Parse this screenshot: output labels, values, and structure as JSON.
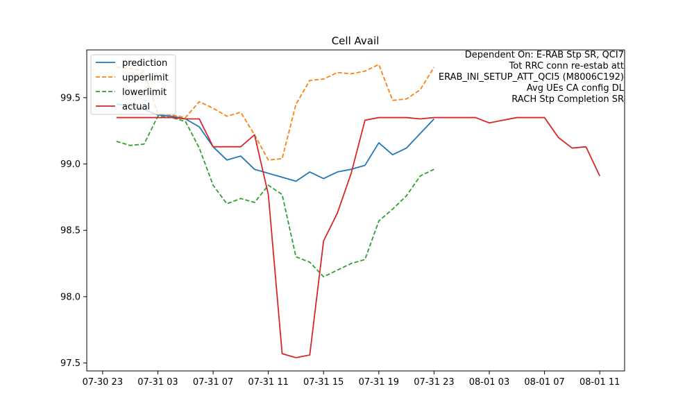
{
  "chart_data": {
    "type": "line",
    "title": "Cell Avail",
    "xlabel": "",
    "ylabel": "",
    "x_ticks": [
      "07-30 23",
      "07-31 03",
      "07-31 07",
      "07-31 11",
      "07-31 15",
      "07-31 19",
      "07-31 23",
      "08-01 03",
      "08-01 07",
      "08-01 11"
    ],
    "y_ticks": [
      "97.5",
      "98.0",
      "98.5",
      "99.0",
      "99.5"
    ],
    "ylim": [
      97.44,
      99.86
    ],
    "xlim_hours": [
      -1.15,
      37.8
    ],
    "annotation": [
      "Dependent On: E-RAB Stp SR, QCI7",
      "Tot RRC conn re-estab att",
      "ERAB_INI_SETUP_ATT_QCI5 (M8006C192)",
      "Avg UEs CA config DL",
      "RACH Stp Completion SR"
    ],
    "legend_position": "upper-left",
    "series": [
      {
        "name": "prediction",
        "color": "#1f77b4",
        "style": "solid",
        "x_hours": [
          1,
          2,
          3,
          4,
          5,
          6,
          7,
          8,
          9,
          10,
          11,
          12,
          13,
          14,
          15,
          16,
          17,
          18,
          19,
          20,
          21,
          22,
          23,
          24
        ],
        "values": [
          99.45,
          99.44,
          99.41,
          99.37,
          99.36,
          99.34,
          99.28,
          99.13,
          99.03,
          99.06,
          98.96,
          98.93,
          98.9,
          98.87,
          98.94,
          98.89,
          98.94,
          98.96,
          98.99,
          99.16,
          99.07,
          99.12,
          99.23,
          99.34
        ]
      },
      {
        "name": "upperlimit",
        "color": "#ff7f0e",
        "style": "dashed",
        "x_hours": [
          1,
          2,
          3,
          4,
          5,
          6,
          7,
          8,
          9,
          10,
          11,
          12,
          13,
          14,
          15,
          16,
          17,
          18,
          19,
          20,
          21,
          22,
          23,
          24
        ],
        "values": [
          99.73,
          99.72,
          99.7,
          99.38,
          99.37,
          99.35,
          99.47,
          99.42,
          99.36,
          99.39,
          99.22,
          99.03,
          99.04,
          99.45,
          99.63,
          99.64,
          99.69,
          99.68,
          99.7,
          99.75,
          99.48,
          99.49,
          99.56,
          99.73
        ]
      },
      {
        "name": "lowerlimit",
        "color": "#2ca02c",
        "style": "dashed",
        "x_hours": [
          1,
          2,
          3,
          4,
          5,
          6,
          7,
          8,
          9,
          10,
          11,
          12,
          13,
          14,
          15,
          16,
          17,
          18,
          19,
          20,
          21,
          22,
          23,
          24
        ],
        "values": [
          99.17,
          99.14,
          99.15,
          99.36,
          99.35,
          99.32,
          99.12,
          98.84,
          98.7,
          98.74,
          98.71,
          98.84,
          98.77,
          98.3,
          98.26,
          98.15,
          98.2,
          98.25,
          98.28,
          98.57,
          98.66,
          98.76,
          98.91,
          98.96
        ]
      },
      {
        "name": "actual",
        "color": "#d62728",
        "style": "solid",
        "x_hours": [
          1,
          2,
          3,
          4,
          5,
          6,
          7,
          8,
          9,
          10,
          11,
          12,
          13,
          14,
          15,
          16,
          17,
          18,
          19,
          20,
          21,
          22,
          23,
          24,
          25,
          26,
          27,
          28,
          29,
          30,
          31,
          32,
          33,
          34,
          35,
          36
        ],
        "values": [
          99.35,
          99.35,
          99.35,
          99.35,
          99.35,
          99.34,
          99.34,
          99.13,
          99.13,
          99.13,
          99.22,
          98.77,
          97.57,
          97.54,
          97.56,
          98.42,
          98.63,
          98.93,
          99.33,
          99.35,
          99.35,
          99.35,
          99.34,
          99.35,
          99.35,
          99.35,
          99.35,
          99.31,
          99.33,
          99.35,
          99.35,
          99.35,
          99.2,
          99.12,
          99.13,
          98.91
        ]
      }
    ]
  }
}
